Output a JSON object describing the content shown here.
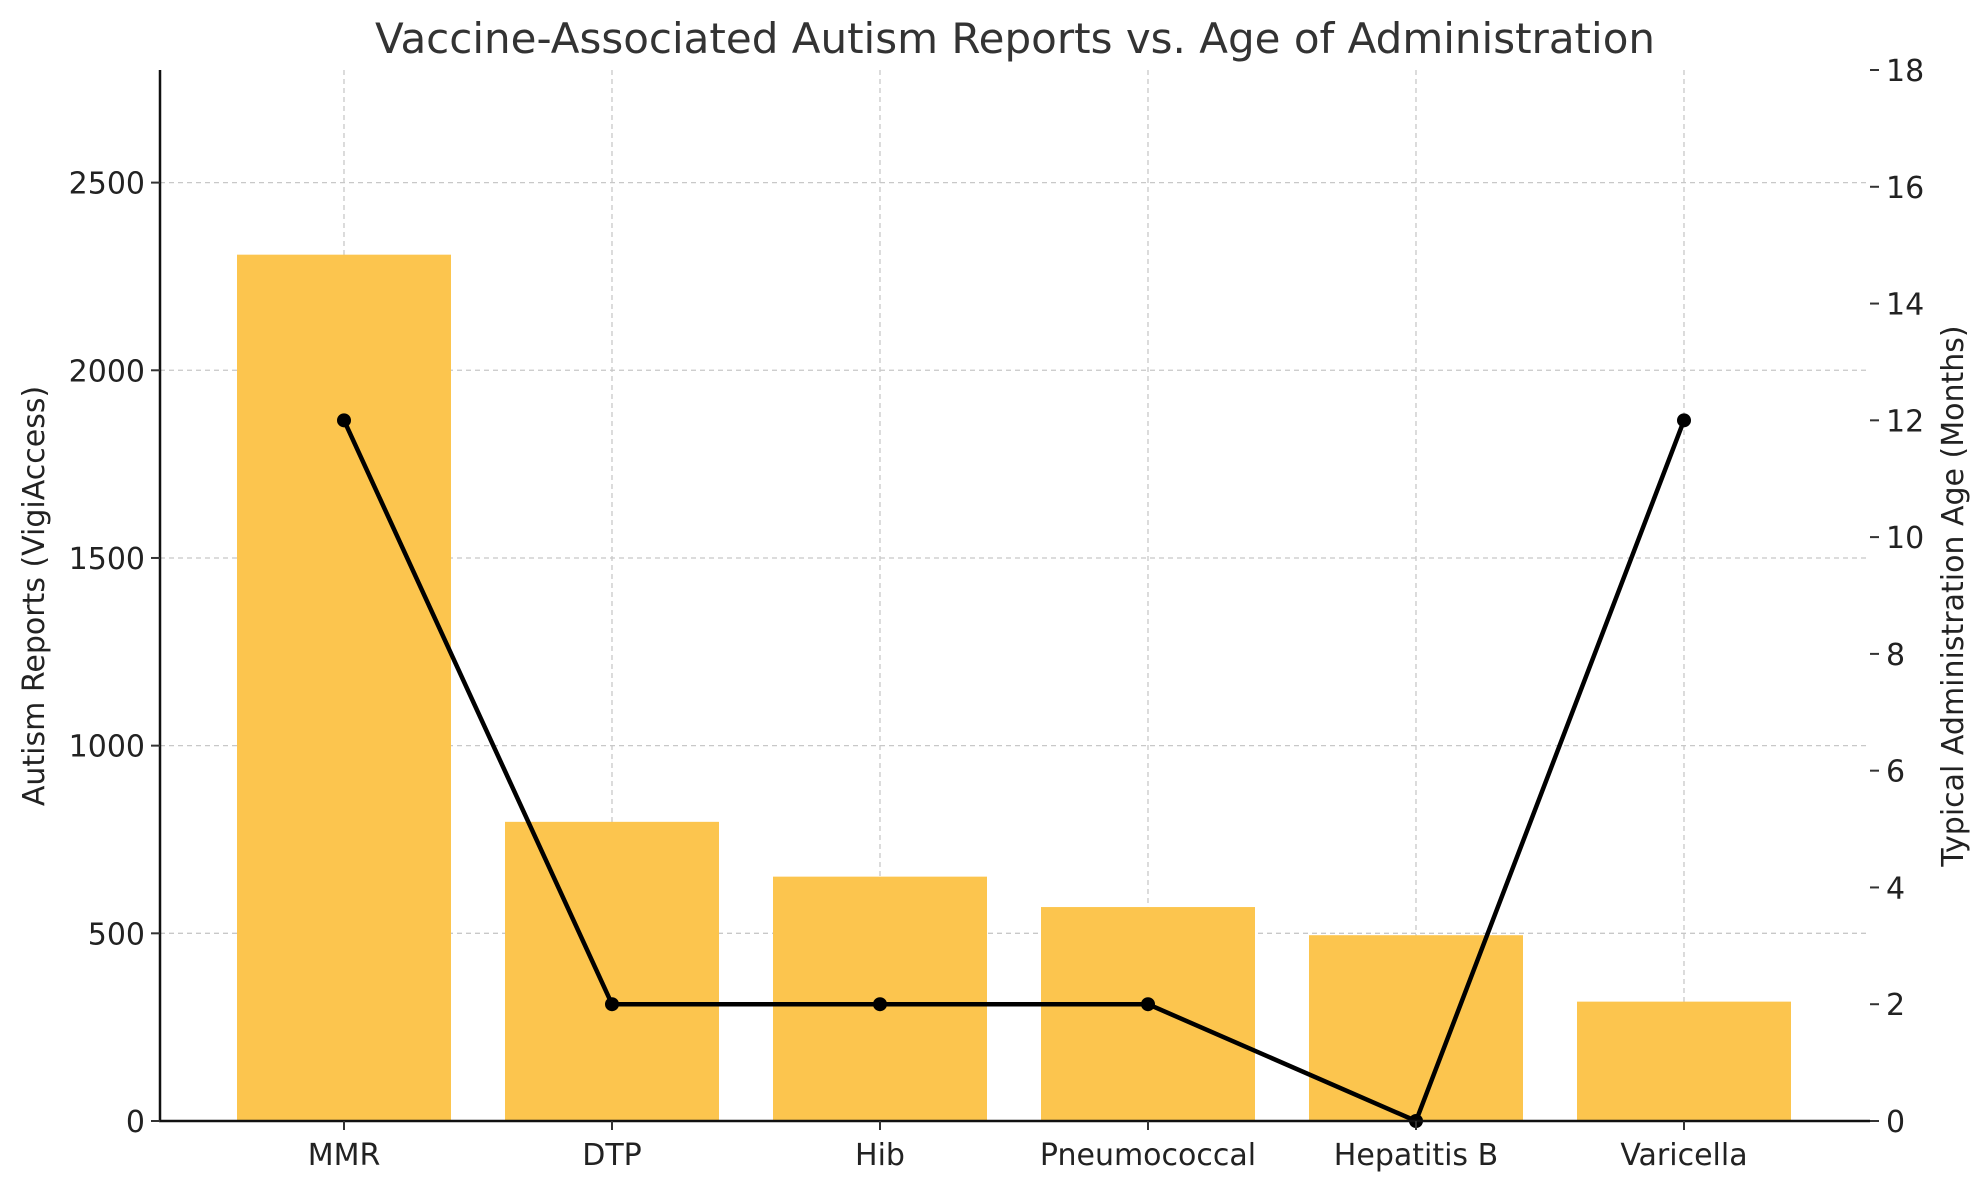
{
  "chart_data": {
    "type": "bar",
    "title": "Vaccine-Associated Autism Reports vs. Age of Administration",
    "categories": [
      "MMR",
      "DTP",
      "Hib",
      "Pneumococcal",
      "Hepatitis B",
      "Varicella"
    ],
    "ylabel": "Autism Reports (VigiAccess)",
    "y2label": "Typical Administration Age (Months)",
    "ylim": [
      0,
      2800
    ],
    "y2lim": [
      0,
      18
    ],
    "yticks": [
      0,
      500,
      1000,
      1500,
      2000,
      2500
    ],
    "y2ticks": [
      0,
      2,
      4,
      6,
      8,
      10,
      12,
      14,
      16,
      18
    ],
    "grid": true,
    "series": [
      {
        "type": "bar",
        "axis": "left",
        "color": "#FCC54E",
        "values": [
          2308,
          797,
          651,
          570,
          495,
          318
        ]
      },
      {
        "type": "line",
        "axis": "right",
        "color": "#000000",
        "marker": "circle",
        "values": [
          12,
          2,
          2,
          2,
          0,
          12
        ]
      }
    ]
  }
}
